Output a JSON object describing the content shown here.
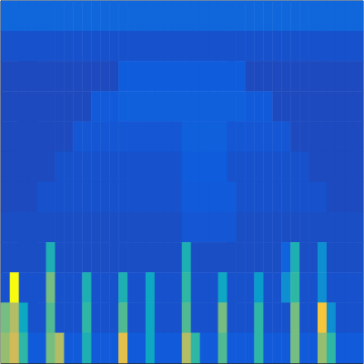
{
  "chart_data": {
    "type": "heatmap",
    "x": [
      null,
      null,
      null,
      null,
      null,
      null,
      null,
      null,
      null,
      null,
      null,
      null,
      null,
      null,
      null,
      null,
      null,
      null,
      null,
      null,
      null,
      null,
      null,
      null,
      null,
      null,
      null,
      null,
      null,
      null,
      null,
      null,
      null,
      null,
      null,
      null,
      null,
      null,
      null,
      null
    ],
    "y": [
      null,
      null,
      null,
      null,
      null,
      null,
      null,
      null,
      null,
      null,
      null,
      null
    ],
    "zlim": [
      0,
      1
    ],
    "tick_labels": false,
    "cells": [
      [
        0.16,
        0.16,
        0.16,
        0.16,
        0.16,
        0.16,
        0.16,
        0.16,
        0.16,
        0.16,
        0.16,
        0.16,
        0.16,
        0.16,
        0.16,
        0.16,
        0.16,
        0.16,
        0.16,
        0.16,
        0.16,
        0.16,
        0.16,
        0.16,
        0.16,
        0.16,
        0.16,
        0.16,
        0.16,
        0.16,
        0.16,
        0.16,
        0.16,
        0.16,
        0.16,
        0.16,
        0.16,
        0.16,
        0.16,
        0.16
      ],
      [
        0.1,
        0.1,
        0.1,
        0.1,
        0.1,
        0.1,
        0.1,
        0.1,
        0.1,
        0.1,
        0.1,
        0.1,
        0.1,
        0.1,
        0.1,
        0.1,
        0.1,
        0.1,
        0.1,
        0.1,
        0.1,
        0.1,
        0.1,
        0.1,
        0.1,
        0.1,
        0.1,
        0.1,
        0.1,
        0.1,
        0.1,
        0.1,
        0.1,
        0.1,
        0.1,
        0.1,
        0.1,
        0.1,
        0.1,
        0.1
      ],
      [
        0.08,
        0.08,
        0.08,
        0.08,
        0.08,
        0.08,
        0.08,
        0.08,
        0.08,
        0.08,
        0.08,
        0.08,
        0.08,
        0.13,
        0.13,
        0.13,
        0.13,
        0.13,
        0.13,
        0.13,
        0.13,
        0.13,
        0.13,
        0.13,
        0.13,
        0.13,
        0.13,
        0.08,
        0.08,
        0.08,
        0.08,
        0.08,
        0.08,
        0.08,
        0.08,
        0.08,
        0.08,
        0.08,
        0.08,
        0.08
      ],
      [
        0.08,
        0.08,
        0.08,
        0.08,
        0.08,
        0.08,
        0.08,
        0.08,
        0.08,
        0.08,
        0.12,
        0.12,
        0.12,
        0.14,
        0.14,
        0.14,
        0.14,
        0.14,
        0.14,
        0.14,
        0.14,
        0.14,
        0.14,
        0.14,
        0.14,
        0.14,
        0.14,
        0.12,
        0.12,
        0.12,
        0.08,
        0.08,
        0.08,
        0.08,
        0.08,
        0.08,
        0.08,
        0.08,
        0.08,
        0.08
      ],
      [
        0.08,
        0.08,
        0.08,
        0.08,
        0.08,
        0.08,
        0.08,
        0.08,
        0.11,
        0.11,
        0.11,
        0.11,
        0.11,
        0.11,
        0.11,
        0.11,
        0.11,
        0.11,
        0.11,
        0.11,
        0.14,
        0.14,
        0.14,
        0.14,
        0.14,
        0.11,
        0.11,
        0.11,
        0.11,
        0.11,
        0.11,
        0.11,
        0.08,
        0.08,
        0.08,
        0.08,
        0.08,
        0.08,
        0.08,
        0.08
      ],
      [
        0.08,
        0.08,
        0.08,
        0.08,
        0.08,
        0.08,
        0.1,
        0.1,
        0.1,
        0.1,
        0.1,
        0.1,
        0.1,
        0.1,
        0.1,
        0.1,
        0.1,
        0.1,
        0.1,
        0.1,
        0.13,
        0.13,
        0.13,
        0.13,
        0.13,
        0.1,
        0.1,
        0.1,
        0.1,
        0.1,
        0.1,
        0.1,
        0.1,
        0.1,
        0.08,
        0.08,
        0.08,
        0.08,
        0.08,
        0.08
      ],
      [
        0.08,
        0.08,
        0.08,
        0.08,
        0.1,
        0.1,
        0.1,
        0.1,
        0.1,
        0.1,
        0.1,
        0.1,
        0.1,
        0.1,
        0.1,
        0.1,
        0.1,
        0.1,
        0.1,
        0.1,
        0.12,
        0.12,
        0.12,
        0.12,
        0.12,
        0.12,
        0.1,
        0.1,
        0.1,
        0.1,
        0.1,
        0.1,
        0.1,
        0.1,
        0.1,
        0.1,
        0.08,
        0.08,
        0.08,
        0.08
      ],
      [
        0.09,
        0.09,
        0.09,
        0.09,
        0.09,
        0.09,
        0.09,
        0.09,
        0.09,
        0.09,
        0.09,
        0.09,
        0.09,
        0.09,
        0.09,
        0.09,
        0.09,
        0.09,
        0.09,
        0.09,
        0.11,
        0.11,
        0.11,
        0.11,
        0.11,
        0.11,
        0.09,
        0.09,
        0.09,
        0.09,
        0.09,
        0.09,
        0.09,
        0.09,
        0.09,
        0.09,
        0.09,
        0.09,
        0.09,
        0.09
      ],
      [
        0.09,
        0.09,
        0.09,
        0.09,
        0.09,
        0.45,
        0.09,
        0.09,
        0.09,
        0.09,
        0.09,
        0.09,
        0.09,
        0.09,
        0.09,
        0.09,
        0.09,
        0.09,
        0.09,
        0.09,
        0.45,
        0.09,
        0.09,
        0.09,
        0.09,
        0.09,
        0.09,
        0.09,
        0.09,
        0.09,
        0.09,
        0.15,
        0.45,
        0.09,
        0.09,
        0.3,
        0.09,
        0.09,
        0.09,
        0.09
      ],
      [
        0.1,
        1,
        0.1,
        0.1,
        0.1,
        0.6,
        0.1,
        0.1,
        0.1,
        0.45,
        0.1,
        0.1,
        0.1,
        0.45,
        0.1,
        0.1,
        0.4,
        0.1,
        0.1,
        0.1,
        0.5,
        0.1,
        0.1,
        0.1,
        0.4,
        0.1,
        0.1,
        0.1,
        0.35,
        0.1,
        0.1,
        0.3,
        0.5,
        0.1,
        0.1,
        0.3,
        0.1,
        0.1,
        0.1,
        0.1
      ],
      [
        0.6,
        0.7,
        0.4,
        0.1,
        0.1,
        0.55,
        0.1,
        0.1,
        0.1,
        0.5,
        0.1,
        0.1,
        0.1,
        0.55,
        0.1,
        0.1,
        0.4,
        0.1,
        0.1,
        0.1,
        0.55,
        0.1,
        0.1,
        0.1,
        0.6,
        0.1,
        0.1,
        0.1,
        0.5,
        0.1,
        0.1,
        0.1,
        0.6,
        0.1,
        0.1,
        0.85,
        0.3,
        0.1,
        0.1,
        0.1
      ],
      [
        0.65,
        0.75,
        0.5,
        0.12,
        0.12,
        0.6,
        0.7,
        0.12,
        0.12,
        0.45,
        0.12,
        0.12,
        0.12,
        0.8,
        0.12,
        0.12,
        0.4,
        0.12,
        0.12,
        0.12,
        0.7,
        0.5,
        0.12,
        0.12,
        0.55,
        0.12,
        0.12,
        0.12,
        0.5,
        0.12,
        0.12,
        0.12,
        0.6,
        0.12,
        0.12,
        0.65,
        0.5,
        0.12,
        0.12,
        0.12
      ]
    ]
  }
}
